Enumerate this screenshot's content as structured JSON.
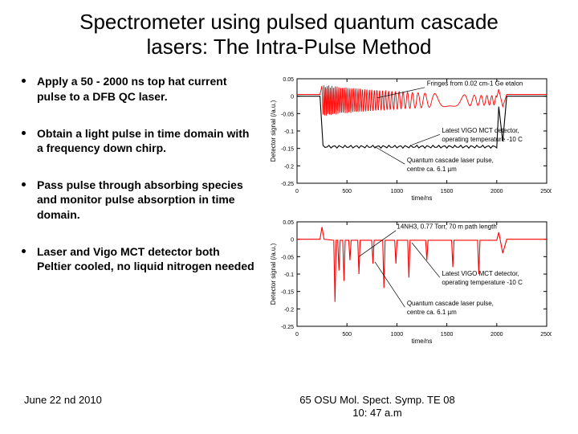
{
  "title_line1": "Spectrometer using pulsed quantum cascade",
  "title_line2": "lasers: The Intra-Pulse Method",
  "bullets": [
    "Apply a 50 - 2000 ns top hat current pulse to a  DFB QC laser.",
    "Obtain a  light pulse in time domain with a frequency down chirp.",
    " Pass pulse through absorbing species and monitor pulse absorption in time domain.",
    "Laser and Vigo MCT detector both Peltier cooled, no liquid nitrogen needed"
  ],
  "footer_left": "June 22 nd 2010",
  "footer_center_l1": "65 OSU Mol. Spect. Symp. TE 08",
  "footer_center_l2": "10: 47 a.m",
  "chart1": {
    "ylabel": "Detector signal (/a.u.)",
    "xlabel": "time/ns",
    "yticks": [
      0.05,
      0,
      -0.05,
      -0.1,
      -0.15,
      -0.2,
      -0.25
    ],
    "xticks": [
      0,
      500,
      1000,
      1500,
      2000,
      2500
    ],
    "annot1": "Fringes from 0.02 cm-1 Ge etalon",
    "annot2_l1": "Latest VIGO MCT detector,",
    "annot2_l2": "operating temperature -10 C",
    "annot3_l1": "Quantum cascade laser pulse,",
    "annot3_l2": "centre ca. 6.1 µm",
    "fringe_color": "#ff0000",
    "trace_color": "#000000",
    "bg_color": "#ffffff",
    "axis_color": "#000000",
    "tick_fontsize": 7,
    "label_fontsize": 8,
    "annot_fontsize": 8
  },
  "chart2": {
    "ylabel": "Detector signal (/a.u.)",
    "xlabel": "time/ns",
    "yticks": [
      0.05,
      0,
      -0.05,
      -0.1,
      -0.15,
      -0.2,
      -0.25
    ],
    "xticks": [
      0,
      500,
      1000,
      1500,
      2000,
      2500
    ],
    "annot1": "14NH3, 0.77 Torr, 70 m path length",
    "annot2_l1": "Latest VIGO MCT detector,",
    "annot2_l2": "operating temperature -10 C",
    "annot3_l1": "Quantum cascade laser pulse,",
    "annot3_l2": "centre ca. 6.1 µm",
    "trace_color": "#ff0000",
    "bg_color": "#ffffff",
    "axis_color": "#000000",
    "tick_fontsize": 7,
    "label_fontsize": 8,
    "annot_fontsize": 8,
    "abs_lines_x": [
      380,
      420,
      470,
      530,
      620,
      760,
      870,
      990,
      1120,
      1300,
      1560,
      1820
    ],
    "abs_lines_depth": [
      0.18,
      0.09,
      0.12,
      0.06,
      0.1,
      0.07,
      0.14,
      0.07,
      0.11,
      0.06,
      0.08,
      0.1
    ]
  }
}
